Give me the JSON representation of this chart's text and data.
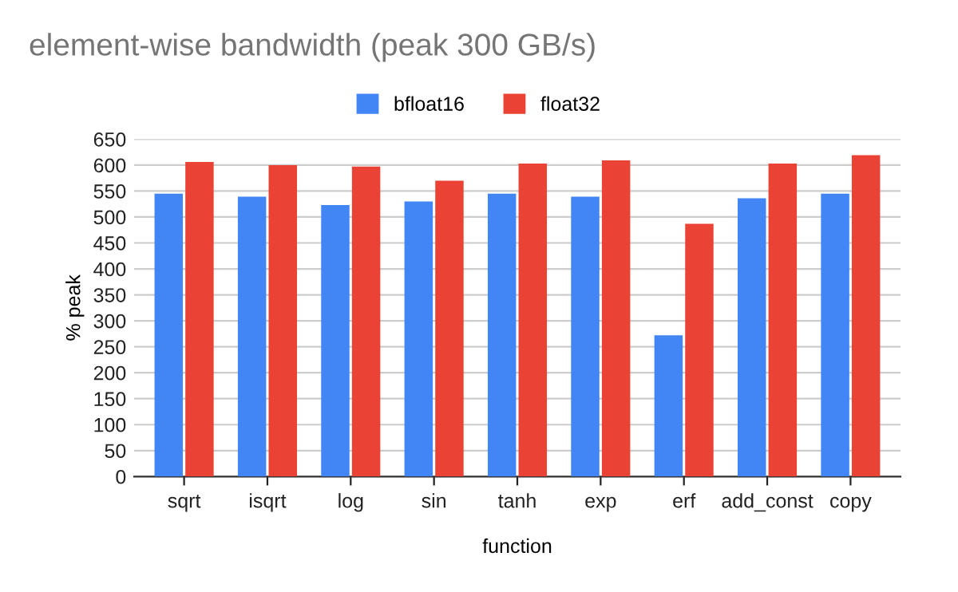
{
  "chart_data": {
    "type": "bar",
    "title": "element-wise bandwidth (peak 300 GB/s)",
    "xlabel": "function",
    "ylabel": "% peak",
    "categories": [
      "sqrt",
      "isqrt",
      "log",
      "sin",
      "tanh",
      "exp",
      "erf",
      "add_const",
      "copy"
    ],
    "series": [
      {
        "name": "bfloat16",
        "color": "#4285f4",
        "values": [
          545,
          539,
          523,
          530,
          545,
          539,
          272,
          536,
          545
        ]
      },
      {
        "name": "float32",
        "color": "#ea4335",
        "values": [
          606,
          600,
          597,
          570,
          603,
          609,
          487,
          603,
          619
        ]
      }
    ],
    "ylim": [
      0,
      650
    ],
    "yticks": [
      0,
      50,
      100,
      150,
      200,
      250,
      300,
      350,
      400,
      450,
      500,
      550,
      600,
      650
    ],
    "grid": "y",
    "legend": "top"
  }
}
